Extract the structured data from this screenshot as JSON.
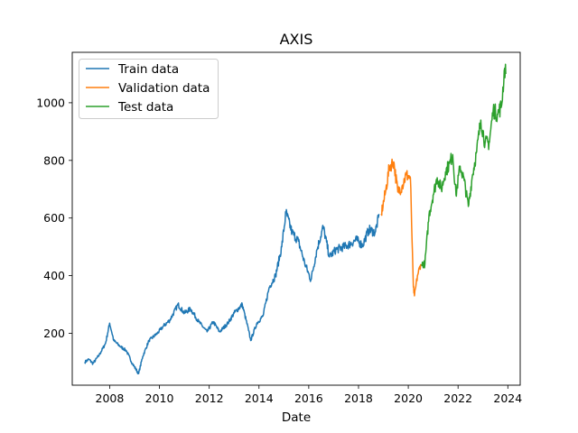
{
  "chart_data": {
    "type": "line",
    "title": "AXIS",
    "xlabel": "Date",
    "ylabel": "",
    "xlim": [
      "2006-07-01",
      "2024-07-01"
    ],
    "ylim": [
      20,
      1175
    ],
    "x_ticks": [
      "2008",
      "2010",
      "2012",
      "2014",
      "2016",
      "2018",
      "2020",
      "2022",
      "2024"
    ],
    "y_ticks": [
      200,
      400,
      600,
      800,
      1000
    ],
    "grid": false,
    "legend_position": "upper-left",
    "series": [
      {
        "name": "Train data",
        "color": "#1f77b4",
        "points": [
          [
            "2007-01-01",
            100
          ],
          [
            "2007-03-01",
            110
          ],
          [
            "2007-05-01",
            95
          ],
          [
            "2007-08-01",
            125
          ],
          [
            "2007-11-01",
            165
          ],
          [
            "2008-01-01",
            235
          ],
          [
            "2008-03-01",
            175
          ],
          [
            "2008-06-01",
            155
          ],
          [
            "2008-09-01",
            140
          ],
          [
            "2008-12-01",
            95
          ],
          [
            "2009-03-01",
            60
          ],
          [
            "2009-05-01",
            120
          ],
          [
            "2009-08-01",
            175
          ],
          [
            "2009-12-01",
            200
          ],
          [
            "2010-03-01",
            225
          ],
          [
            "2010-06-01",
            245
          ],
          [
            "2010-10-01",
            300
          ],
          [
            "2011-01-01",
            270
          ],
          [
            "2011-04-01",
            285
          ],
          [
            "2011-08-01",
            240
          ],
          [
            "2011-12-01",
            205
          ],
          [
            "2012-03-01",
            240
          ],
          [
            "2012-06-01",
            205
          ],
          [
            "2012-10-01",
            235
          ],
          [
            "2013-01-01",
            270
          ],
          [
            "2013-05-01",
            300
          ],
          [
            "2013-08-01",
            210
          ],
          [
            "2013-09-01",
            175
          ],
          [
            "2013-12-01",
            235
          ],
          [
            "2014-03-01",
            260
          ],
          [
            "2014-06-01",
            360
          ],
          [
            "2014-09-01",
            400
          ],
          [
            "2014-12-01",
            500
          ],
          [
            "2015-02-01",
            620
          ],
          [
            "2015-05-01",
            550
          ],
          [
            "2015-08-01",
            520
          ],
          [
            "2015-11-01",
            445
          ],
          [
            "2016-02-01",
            385
          ],
          [
            "2016-05-01",
            490
          ],
          [
            "2016-08-01",
            570
          ],
          [
            "2016-11-01",
            465
          ],
          [
            "2017-02-01",
            490
          ],
          [
            "2017-06-01",
            500
          ],
          [
            "2017-09-01",
            510
          ],
          [
            "2017-12-01",
            525
          ],
          [
            "2018-03-01",
            505
          ],
          [
            "2018-06-01",
            560
          ],
          [
            "2018-09-01",
            550
          ],
          [
            "2018-11-01",
            610
          ]
        ]
      },
      {
        "name": "Validation data",
        "color": "#ff7f0e",
        "points": [
          [
            "2018-12-01",
            615
          ],
          [
            "2019-02-01",
            690
          ],
          [
            "2019-04-01",
            780
          ],
          [
            "2019-06-01",
            795
          ],
          [
            "2019-08-01",
            690
          ],
          [
            "2019-10-01",
            710
          ],
          [
            "2019-12-01",
            750
          ],
          [
            "2020-02-01",
            740
          ],
          [
            "2020-03-15",
            360
          ],
          [
            "2020-04-01",
            330
          ],
          [
            "2020-05-15",
            400
          ],
          [
            "2020-07-01",
            440
          ]
        ]
      },
      {
        "name": "Test data",
        "color": "#2ca02c",
        "points": [
          [
            "2020-07-15",
            440
          ],
          [
            "2020-09-01",
            440
          ],
          [
            "2020-11-01",
            610
          ],
          [
            "2021-01-01",
            680
          ],
          [
            "2021-03-01",
            740
          ],
          [
            "2021-05-01",
            700
          ],
          [
            "2021-07-01",
            760
          ],
          [
            "2021-09-01",
            790
          ],
          [
            "2021-10-15",
            820
          ],
          [
            "2021-12-01",
            680
          ],
          [
            "2022-02-01",
            780
          ],
          [
            "2022-04-01",
            730
          ],
          [
            "2022-06-01",
            640
          ],
          [
            "2022-08-01",
            750
          ],
          [
            "2022-10-01",
            830
          ],
          [
            "2022-12-01",
            940
          ],
          [
            "2023-02-01",
            860
          ],
          [
            "2023-04-01",
            860
          ],
          [
            "2023-06-01",
            975
          ],
          [
            "2023-08-01",
            960
          ],
          [
            "2023-10-01",
            990
          ],
          [
            "2023-11-15",
            1120
          ],
          [
            "2023-12-01",
            1100
          ]
        ]
      }
    ]
  }
}
